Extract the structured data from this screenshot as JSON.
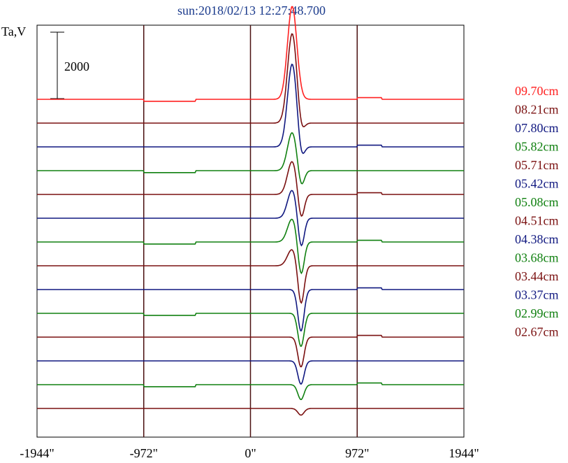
{
  "chart_data": {
    "type": "line",
    "title": "sun:2018/02/13 12:27:48.700",
    "ylabel": "Ta,V",
    "xlabel": "",
    "xlim": [
      -1944,
      1944
    ],
    "x_ticks": [
      -1944,
      -972,
      0,
      972,
      1944
    ],
    "x_tick_labels": [
      "-1944\"",
      "-972\"",
      "0\"",
      "972\"",
      "1944\""
    ],
    "scale_bar_value": 2000,
    "scale_bar_label": "2000",
    "grid": "vertical lines at -972, 0, 972",
    "legend_position": "right",
    "series": [
      {
        "name": "09.70cm",
        "color": "#ff2020",
        "peak": 2800,
        "dip": 0
      },
      {
        "name": "08.21cm",
        "color": "#7a1010",
        "peak": 2700,
        "dip": -350
      },
      {
        "name": "07.80cm",
        "color": "#101880",
        "peak": 2500,
        "dip": -450
      },
      {
        "name": "05.82cm",
        "color": "#108010",
        "peak": 1150,
        "dip": -550
      },
      {
        "name": "05.71cm",
        "color": "#7a1010",
        "peak": 1000,
        "dip": -800
      },
      {
        "name": "05.42cm",
        "color": "#101880",
        "peak": 850,
        "dip": -950
      },
      {
        "name": "05.08cm",
        "color": "#108010",
        "peak": 700,
        "dip": -1050
      },
      {
        "name": "04.51cm",
        "color": "#7a1010",
        "peak": 500,
        "dip": -1200
      },
      {
        "name": "04.38cm",
        "color": "#101880",
        "peak": 0,
        "dip": -1250
      },
      {
        "name": "03.68cm",
        "color": "#108010",
        "peak": 0,
        "dip": -1000
      },
      {
        "name": "03.44cm",
        "color": "#7a1010",
        "peak": 0,
        "dip": -900
      },
      {
        "name": "03.37cm",
        "color": "#101880",
        "peak": 0,
        "dip": -700
      },
      {
        "name": "02.99cm",
        "color": "#108010",
        "peak": 0,
        "dip": -450
      },
      {
        "name": "02.67cm",
        "color": "#7a1010",
        "peak": 0,
        "dip": -200
      }
    ]
  }
}
